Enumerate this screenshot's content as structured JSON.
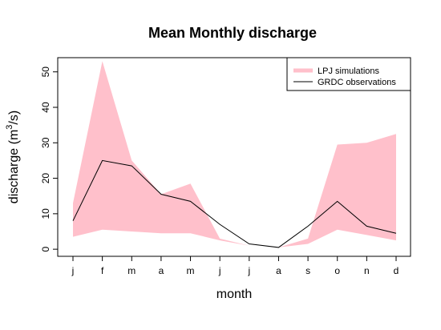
{
  "chart_data": {
    "type": "area",
    "title": "Mean Monthly discharge",
    "xlabel": "month",
    "ylabel": {
      "prefix": "discharge (m",
      "superscript": "3",
      "suffix": "/s)"
    },
    "categories": [
      "j",
      "f",
      "m",
      "a",
      "m",
      "j",
      "j",
      "a",
      "s",
      "o",
      "n",
      "d"
    ],
    "ylim": [
      -2,
      54
    ],
    "yticks": [
      0,
      10,
      20,
      30,
      40,
      50
    ],
    "series": [
      {
        "name": "LPJ simulations",
        "kind": "band",
        "color": "#FFC0CB",
        "upper": [
          13,
          53,
          25,
          15.5,
          18.5,
          3,
          1,
          0.5,
          3,
          29.5,
          30,
          32.5
        ],
        "lower": [
          3.5,
          5.5,
          5,
          4.5,
          4.5,
          2.5,
          1,
          0.5,
          1.5,
          5.5,
          4,
          2.5
        ]
      },
      {
        "name": "GRDC observations",
        "kind": "line",
        "color": "#000000",
        "values": [
          8,
          25,
          23.5,
          15.5,
          13.5,
          7,
          1.5,
          0.5,
          6.5,
          13.5,
          6.5,
          4.5
        ]
      }
    ],
    "legend": "top-right",
    "grid": false
  }
}
